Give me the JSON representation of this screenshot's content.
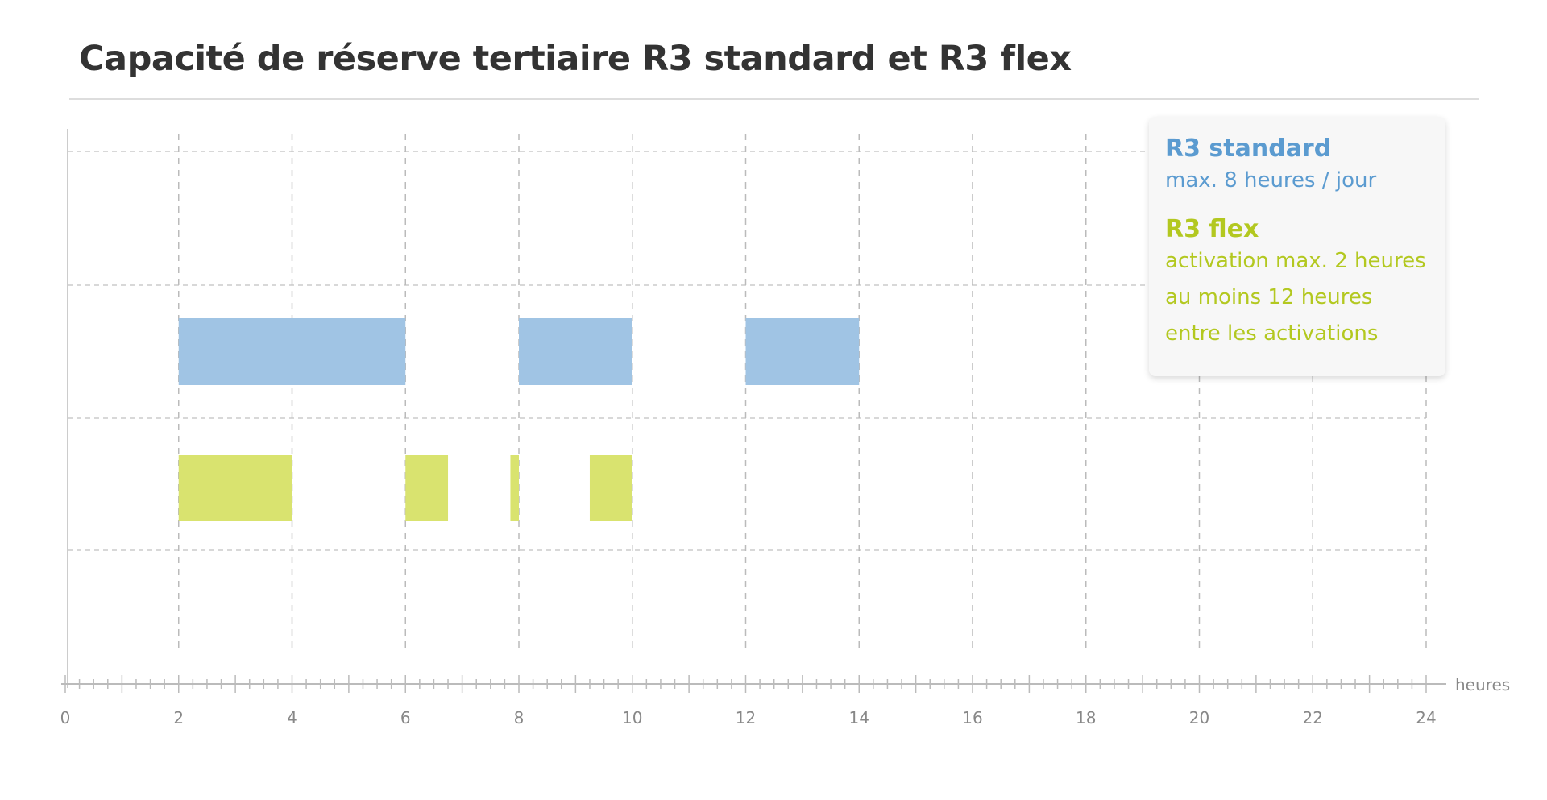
{
  "title": "Capacité de réserve tertiaire R3 standard et R3 flex",
  "chart_data": {
    "type": "bar",
    "subtype": "timeline",
    "title": "Capacité de réserve tertiaire R3 standard et R3 flex",
    "xlabel": "heures",
    "xlim": [
      0,
      24
    ],
    "xticks": [
      "0",
      "2",
      "4",
      "6",
      "8",
      "10",
      "12",
      "14",
      "16",
      "18",
      "20",
      "22",
      "24"
    ],
    "grid": true,
    "legend_position": "top-right",
    "series": [
      {
        "name": "R3 standard",
        "color": "#a0c4e4",
        "text_color": "#5b9bd0",
        "intervals": [
          [
            2,
            6
          ],
          [
            8,
            10
          ],
          [
            12,
            14
          ]
        ]
      },
      {
        "name": "R3 flex",
        "color": "#d9e36f",
        "text_color": "#b3c820",
        "intervals": [
          [
            2,
            4
          ],
          [
            6,
            6.75
          ],
          [
            7.85,
            8
          ],
          [
            9.25,
            10
          ]
        ]
      }
    ]
  },
  "legend": {
    "standard_title": "R3 standard",
    "standard_desc": "max. 8 heures / jour",
    "flex_title": "R3 flex",
    "flex_desc": [
      "activation max. 2 heures",
      "au moins 12 heures",
      "entre les activations"
    ]
  }
}
